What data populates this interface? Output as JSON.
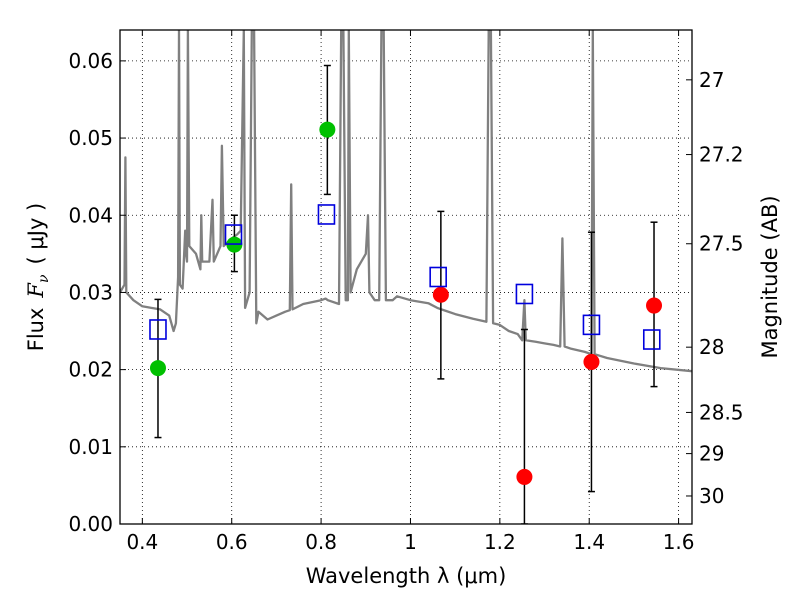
{
  "chart_data": {
    "type": "scatter",
    "xlabel": "Wavelength  λ (μm)",
    "ylabel": "Flux  F_ν  ( μJy )",
    "ylabel_parts": {
      "prefix": "Flux",
      "symbol": "F",
      "subscript": "ν",
      "unit": "( μJy )"
    },
    "y2label": "Magnitude (AB)",
    "xlim": [
      0.35,
      1.63
    ],
    "ylim": [
      0.0,
      0.064
    ],
    "grid": true,
    "x_ticks": [
      {
        "value": 0.4,
        "label": "0.4"
      },
      {
        "value": 0.6,
        "label": "0.6"
      },
      {
        "value": 0.8,
        "label": "0.8"
      },
      {
        "value": 1.0,
        "label": "1"
      },
      {
        "value": 1.2,
        "label": "1.2"
      },
      {
        "value": 1.4,
        "label": "1.4"
      },
      {
        "value": 1.6,
        "label": "1.6"
      }
    ],
    "y_ticks": [
      {
        "value": 0.0,
        "label": "0.00"
      },
      {
        "value": 0.01,
        "label": "0.01"
      },
      {
        "value": 0.02,
        "label": "0.02"
      },
      {
        "value": 0.03,
        "label": "0.03"
      },
      {
        "value": 0.04,
        "label": "0.04"
      },
      {
        "value": 0.05,
        "label": "0.05"
      },
      {
        "value": 0.06,
        "label": "0.06"
      }
    ],
    "y2_ticks": [
      {
        "value": 27,
        "label": "27"
      },
      {
        "value": 27.2,
        "label": "27.2"
      },
      {
        "value": 27.5,
        "label": "27.5"
      },
      {
        "value": 28,
        "label": "28"
      },
      {
        "value": 28.5,
        "label": "28.5"
      },
      {
        "value": 29,
        "label": "29"
      },
      {
        "value": 30,
        "label": "30"
      }
    ],
    "series": [
      {
        "kind": "line",
        "color": "#808080",
        "points": [
          [
            0.35,
            0.03
          ],
          [
            0.355,
            0.0305
          ],
          [
            0.36,
            0.031
          ],
          [
            0.362,
            0.0475
          ],
          [
            0.364,
            0.03
          ],
          [
            0.38,
            0.029
          ],
          [
            0.4,
            0.0282
          ],
          [
            0.42,
            0.028
          ],
          [
            0.44,
            0.0278
          ],
          [
            0.46,
            0.027
          ],
          [
            0.47,
            0.025
          ],
          [
            0.475,
            0.026
          ],
          [
            0.48,
            0.032
          ],
          [
            0.482,
            0.064
          ],
          [
            0.484,
            0.031
          ],
          [
            0.49,
            0.0305
          ],
          [
            0.496,
            0.038
          ],
          [
            0.498,
            0.035
          ],
          [
            0.5,
            0.034
          ],
          [
            0.502,
            0.064
          ],
          [
            0.505,
            0.036
          ],
          [
            0.52,
            0.035
          ],
          [
            0.53,
            0.033
          ],
          [
            0.532,
            0.04
          ],
          [
            0.534,
            0.034
          ],
          [
            0.55,
            0.034
          ],
          [
            0.557,
            0.042
          ],
          [
            0.56,
            0.034
          ],
          [
            0.575,
            0.036
          ],
          [
            0.578,
            0.049
          ],
          [
            0.582,
            0.036
          ],
          [
            0.6,
            0.037
          ],
          [
            0.612,
            0.0375
          ],
          [
            0.62,
            0.038
          ],
          [
            0.627,
            0.064
          ],
          [
            0.63,
            0.028
          ],
          [
            0.64,
            0.03
          ],
          [
            0.645,
            0.064
          ],
          [
            0.65,
            0.064
          ],
          [
            0.655,
            0.026
          ],
          [
            0.66,
            0.0275
          ],
          [
            0.67,
            0.027
          ],
          [
            0.68,
            0.0265
          ],
          [
            0.7,
            0.027
          ],
          [
            0.72,
            0.0275
          ],
          [
            0.73,
            0.0277
          ],
          [
            0.733,
            0.044
          ],
          [
            0.736,
            0.0278
          ],
          [
            0.76,
            0.0285
          ],
          [
            0.8,
            0.029
          ],
          [
            0.81,
            0.0292
          ],
          [
            0.815,
            0.029
          ],
          [
            0.84,
            0.0285
          ],
          [
            0.845,
            0.064
          ],
          [
            0.85,
            0.064
          ],
          [
            0.855,
            0.029
          ],
          [
            0.86,
            0.029
          ],
          [
            0.862,
            0.064
          ],
          [
            0.866,
            0.03
          ],
          [
            0.88,
            0.033
          ],
          [
            0.9,
            0.035
          ],
          [
            0.905,
            0.04
          ],
          [
            0.908,
            0.03
          ],
          [
            0.92,
            0.029
          ],
          [
            0.93,
            0.029
          ],
          [
            0.935,
            0.064
          ],
          [
            0.94,
            0.064
          ],
          [
            0.945,
            0.029
          ],
          [
            0.96,
            0.029
          ],
          [
            0.97,
            0.0295
          ],
          [
            1.0,
            0.029
          ],
          [
            1.04,
            0.0286
          ],
          [
            1.06,
            0.028
          ],
          [
            1.08,
            0.0276
          ],
          [
            1.1,
            0.0272
          ],
          [
            1.14,
            0.0266
          ],
          [
            1.17,
            0.0262
          ],
          [
            1.175,
            0.064
          ],
          [
            1.18,
            0.064
          ],
          [
            1.185,
            0.026
          ],
          [
            1.2,
            0.0258
          ],
          [
            1.22,
            0.025
          ],
          [
            1.24,
            0.0246
          ],
          [
            1.25,
            0.0238
          ],
          [
            1.255,
            0.029
          ],
          [
            1.258,
            0.0238
          ],
          [
            1.28,
            0.0236
          ],
          [
            1.3,
            0.0234
          ],
          [
            1.32,
            0.0232
          ],
          [
            1.335,
            0.023
          ],
          [
            1.34,
            0.037
          ],
          [
            1.345,
            0.023
          ],
          [
            1.36,
            0.0227
          ],
          [
            1.39,
            0.0223
          ],
          [
            1.405,
            0.022
          ],
          [
            1.408,
            0.064
          ],
          [
            1.412,
            0.022
          ],
          [
            1.44,
            0.0215
          ],
          [
            1.5,
            0.0208
          ],
          [
            1.56,
            0.0202
          ],
          [
            1.63,
            0.0198
          ]
        ]
      },
      {
        "kind": "points",
        "marker": "circle",
        "color": "#00c000",
        "points": [
          {
            "x": 0.435,
            "y": 0.0202,
            "err": [
              0.0112,
              0.0291
            ]
          },
          {
            "x": 0.606,
            "y": 0.0362,
            "err": [
              0.0327,
              0.04
            ]
          },
          {
            "x": 0.814,
            "y": 0.0511,
            "err": [
              0.0427,
              0.0594
            ]
          }
        ]
      },
      {
        "kind": "points",
        "marker": "circle",
        "color": "#ff0000",
        "points": [
          {
            "x": 1.068,
            "y": 0.0297,
            "err": [
              0.0188,
              0.0405
            ]
          },
          {
            "x": 1.255,
            "y": 0.0061,
            "err": [
              0.0,
              0.0252
            ]
          },
          {
            "x": 1.405,
            "y": 0.021,
            "err": [
              0.0042,
              0.0378
            ]
          },
          {
            "x": 1.545,
            "y": 0.0283,
            "err": [
              0.0178,
              0.0391
            ]
          }
        ]
      },
      {
        "kind": "points",
        "marker": "square",
        "color": "#0000dd",
        "points": [
          {
            "x": 0.435,
            "y": 0.0252
          },
          {
            "x": 0.604,
            "y": 0.0375
          },
          {
            "x": 0.812,
            "y": 0.0401
          },
          {
            "x": 1.062,
            "y": 0.032
          },
          {
            "x": 1.255,
            "y": 0.0298
          },
          {
            "x": 1.405,
            "y": 0.0258
          },
          {
            "x": 1.54,
            "y": 0.0239
          }
        ]
      }
    ]
  }
}
